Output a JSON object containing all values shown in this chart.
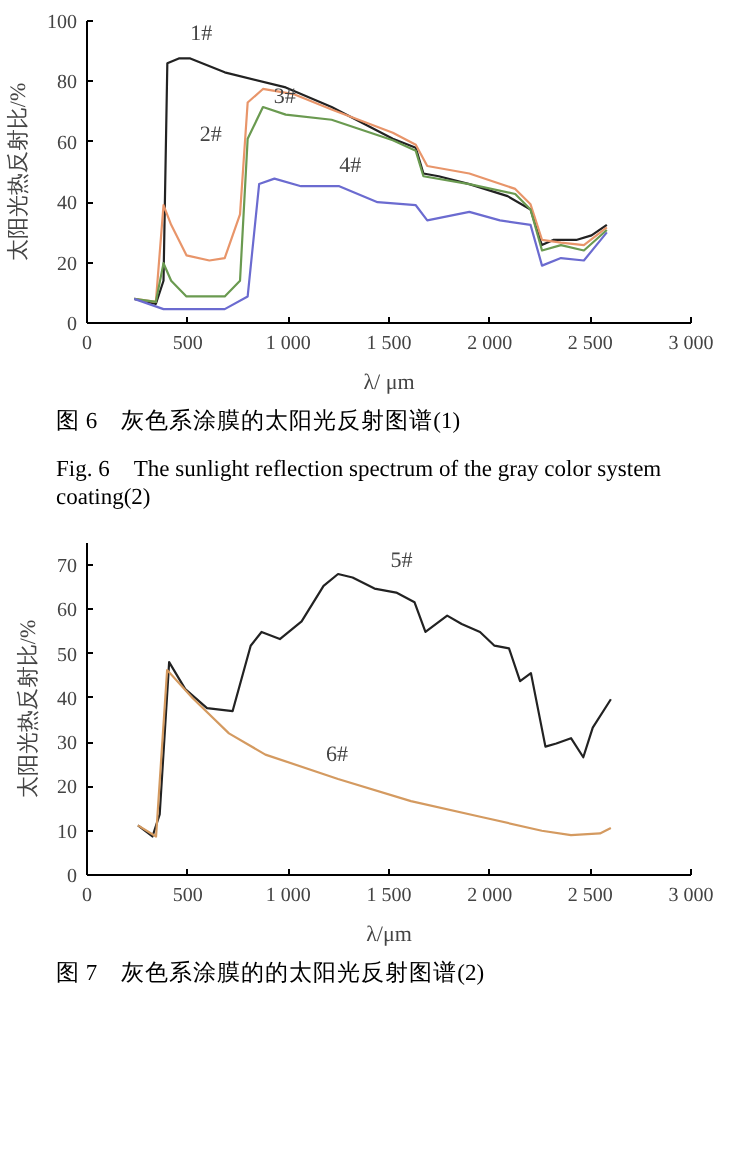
{
  "chart_data": [
    {
      "type": "line",
      "xlabel": "λ/ μm",
      "ylabel": "太阳光热反射比/%",
      "xlim": [
        0,
        3000
      ],
      "ylim": [
        0,
        100
      ],
      "xticks": [
        0,
        {
          "value": 500,
          "label": "500"
        },
        {
          "value": 1000,
          "label": "1 000"
        },
        {
          "value": 1500,
          "label": "1 500"
        },
        {
          "value": 2000,
          "label": "2 000"
        },
        {
          "value": 2500,
          "label": "2 500"
        },
        {
          "value": 3000,
          "label": "3 000"
        }
      ],
      "yticks": [
        0,
        20,
        40,
        60,
        80,
        100
      ],
      "grid": false,
      "series": [
        {
          "name": "1#",
          "color": "#222222",
          "x": [
            235,
            342,
            380,
            399,
            456,
            513,
            684,
            987,
            1215,
            1519,
            1633,
            1671,
            1747,
            1899,
            2089,
            2203,
            2259,
            2316,
            2430,
            2506,
            2582
          ],
          "values": [
            8,
            6.3,
            14,
            86,
            87.6,
            87.6,
            83,
            78,
            71.5,
            61,
            58,
            49.5,
            48.6,
            46,
            42,
            37.6,
            25.8,
            27.5,
            27.5,
            29,
            32.5
          ]
        },
        {
          "name": "2#",
          "color": "#e8956a",
          "x": [
            235,
            342,
            380,
            418,
            494,
            608,
            684,
            760,
            798,
            874,
            1025,
            1215,
            1519,
            1633,
            1690,
            1899,
            2127,
            2203,
            2260,
            2354,
            2468,
            2582
          ],
          "values": [
            8,
            7,
            39,
            32.5,
            22.4,
            20.7,
            21.5,
            36,
            73,
            77.5,
            75.8,
            70.7,
            63,
            59,
            52,
            49.5,
            44.4,
            39.3,
            27.5,
            26.6,
            25.8,
            31.7
          ]
        },
        {
          "name": "3#",
          "color": "#6a9a50",
          "x": [
            235,
            342,
            380,
            418,
            494,
            684,
            760,
            798,
            874,
            987,
            1215,
            1519,
            1633,
            1671,
            1899,
            2127,
            2203,
            2260,
            2354,
            2468,
            2582
          ],
          "values": [
            8,
            7,
            19.8,
            14,
            8.8,
            8.8,
            14,
            61,
            71.5,
            69,
            67.3,
            60.5,
            57,
            48.6,
            46,
            42.7,
            37.6,
            24,
            25.8,
            24,
            30.8
          ]
        },
        {
          "name": "4#",
          "color": "#6b6bd0",
          "x": [
            235,
            380,
            684,
            798,
            855,
            931,
            1063,
            1253,
            1443,
            1633,
            1690,
            1899,
            2051,
            2203,
            2260,
            2354,
            2468,
            2582
          ],
          "values": [
            8,
            4.6,
            4.6,
            8.8,
            46,
            47.8,
            45.3,
            45.3,
            40,
            39,
            34,
            36.8,
            34,
            32.5,
            19,
            21.5,
            20.7,
            30
          ]
        }
      ],
      "annotations": [
        "图 6　灰色系涂膜的太阳光反射图谱(1)",
        "Fig. 6　The sunlight reflection spectrum of the gray color system coating(2)"
      ]
    },
    {
      "type": "line",
      "xlabel": "λ/μm",
      "ylabel": "太阳光热反射比/%",
      "xlim": [
        0,
        3000
      ],
      "ylim": [
        0,
        75
      ],
      "xticks": [
        0,
        {
          "value": 500,
          "label": "500"
        },
        {
          "value": 1000,
          "label": "1 000"
        },
        {
          "value": 1500,
          "label": "1 500"
        },
        {
          "value": 2000,
          "label": "2 000"
        },
        {
          "value": 2500,
          "label": "2 500"
        },
        {
          "value": 3000,
          "label": "3 000"
        }
      ],
      "yticks": [
        0,
        10,
        20,
        30,
        40,
        50,
        60,
        70
      ],
      "grid": false,
      "series": [
        {
          "name": "5#",
          "color": "#222222",
          "x": [
            253,
            325,
            361,
            408,
            488,
            596,
            723,
            813,
            867,
            958,
            1066,
            1175,
            1247,
            1319,
            1428,
            1536,
            1627,
            1681,
            1789,
            1861,
            1952,
            2024,
            2096,
            2151,
            2205,
            2277,
            2331,
            2404,
            2465,
            2512,
            2602
          ],
          "values": [
            11.2,
            8.7,
            13.7,
            48.1,
            42,
            37.7,
            37,
            51.8,
            54.9,
            53.3,
            57.3,
            65.3,
            68,
            67.2,
            64.7,
            63.8,
            61.6,
            54.9,
            58.6,
            56.7,
            54.9,
            51.8,
            51.2,
            43.8,
            45.6,
            29,
            29.7,
            30.9,
            26.6,
            33.3,
            39.7
          ]
        },
        {
          "name": "6#",
          "color": "#d49a60",
          "x": [
            253,
            343,
            398,
            524,
            705,
            886,
            1247,
            1609,
            1970,
            2259,
            2404,
            2548,
            2602
          ],
          "values": [
            11.2,
            8.7,
            46.3,
            40,
            32,
            27.2,
            21.7,
            16.7,
            13,
            10,
            9,
            9.4,
            10.6
          ]
        }
      ],
      "annotations": [
        "图 7　灰色系涂膜的的太阳光反射图谱(2)"
      ]
    }
  ]
}
